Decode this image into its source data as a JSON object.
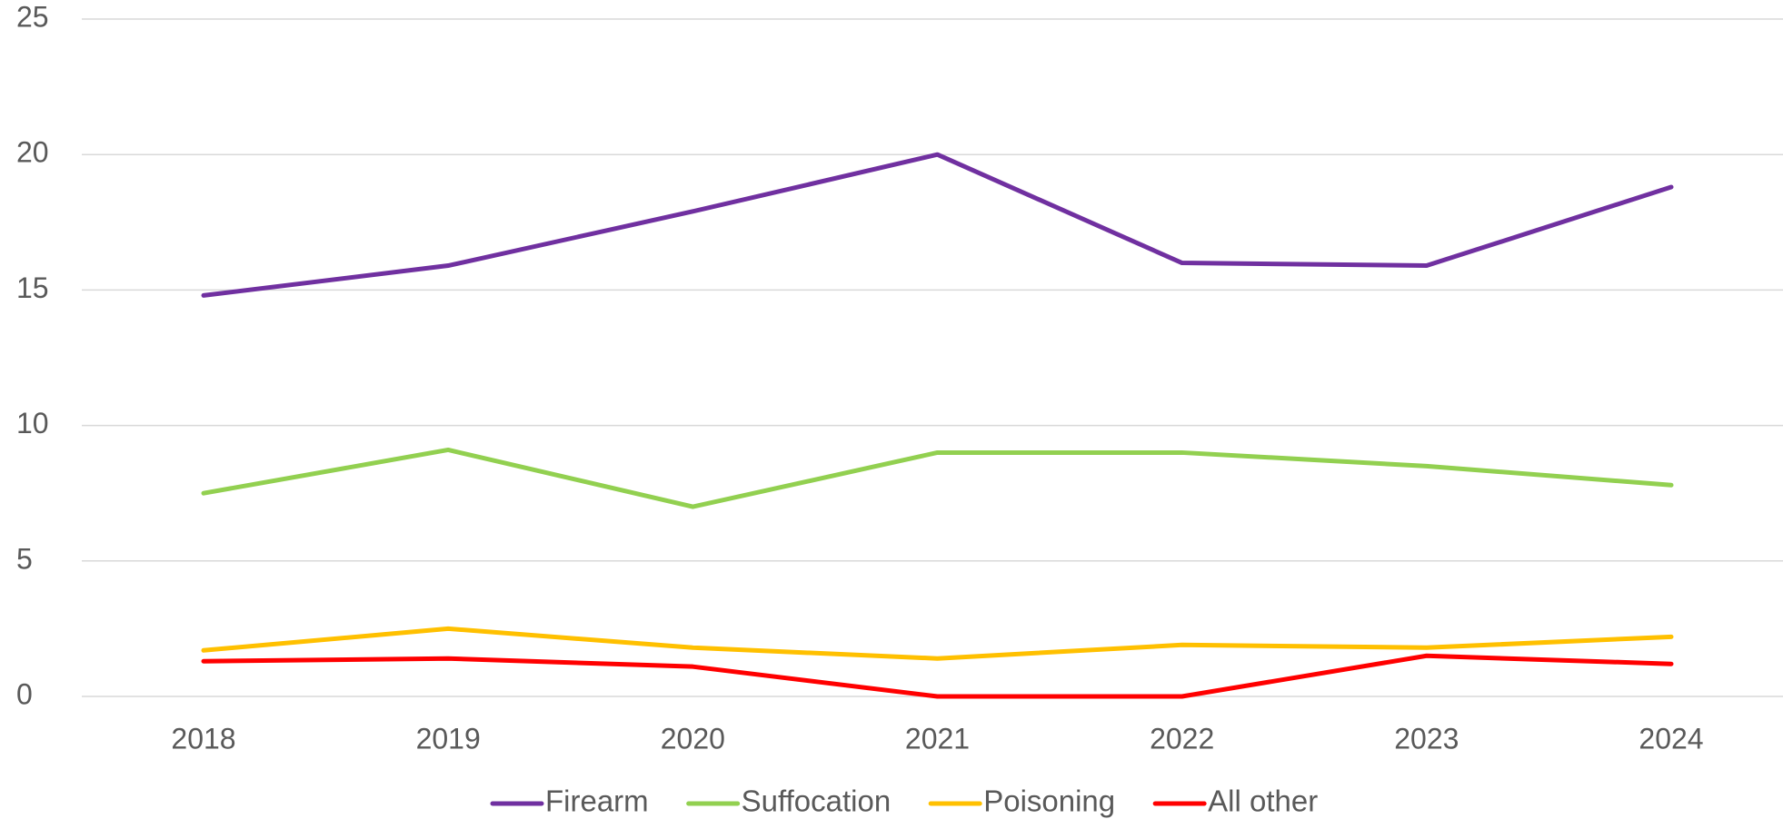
{
  "chart_data": {
    "type": "line",
    "categories": [
      "2018",
      "2019",
      "2020",
      "2021",
      "2022",
      "2023",
      "2024"
    ],
    "series": [
      {
        "name": "Firearm",
        "color": "#7030a0",
        "values": [
          14.8,
          15.9,
          17.9,
          20.0,
          16.0,
          15.9,
          18.8
        ]
      },
      {
        "name": "Suffocation",
        "color": "#92d050",
        "values": [
          7.5,
          9.1,
          7.0,
          9.0,
          9.0,
          8.5,
          7.8
        ]
      },
      {
        "name": "Poisoning",
        "color": "#ffc000",
        "values": [
          1.7,
          2.5,
          1.8,
          1.4,
          1.9,
          1.8,
          2.2
        ]
      },
      {
        "name": "All other",
        "color": "#ff0000",
        "values": [
          1.3,
          1.4,
          1.1,
          0,
          0,
          1.5,
          1.2
        ]
      }
    ],
    "ylim": [
      0,
      25
    ],
    "yticks": [
      0,
      5,
      10,
      15,
      20,
      25
    ],
    "grid": true,
    "legend": "bottom"
  }
}
